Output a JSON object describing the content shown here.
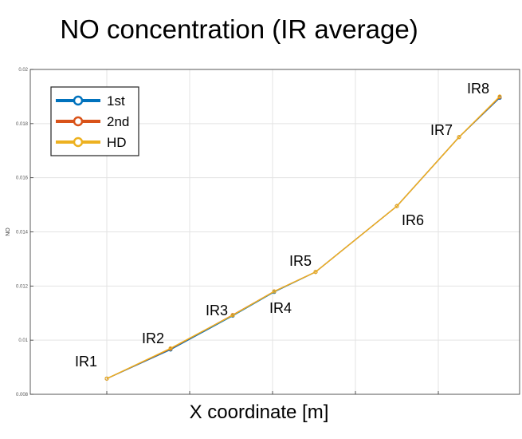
{
  "chart_data": {
    "type": "line",
    "title": "NO concentration (IR average)",
    "xlabel": "X coordinate [m]",
    "ylabel": "NO",
    "ylim": [
      0.008,
      0.02
    ],
    "yticks": [
      "0.008",
      "0.01",
      "0.012",
      "0.014",
      "0.016",
      "0.018",
      "0.02"
    ],
    "ytick_values": [
      0.008,
      0.01,
      0.012,
      0.014,
      0.016,
      0.018,
      0.02
    ],
    "grid": true,
    "legend": "top-left",
    "point_labels": [
      "IR1",
      "IR2",
      "IR3",
      "IR4",
      "IR5",
      "IR6",
      "IR7",
      "IR8"
    ],
    "series": [
      {
        "name": "1st",
        "color": "#0072BD",
        "y": [
          0.00858,
          0.00965,
          0.0109,
          0.01178,
          0.01252,
          0.01495,
          0.0175,
          0.01895
        ]
      },
      {
        "name": "2nd",
        "color": "#D95319",
        "y": [
          0.00858,
          0.00968,
          0.01093,
          0.0118,
          0.01252,
          0.01495,
          0.0175,
          0.01898
        ]
      },
      {
        "name": "HD",
        "color": "#EDB120",
        "y": [
          0.00858,
          0.0097,
          0.01092,
          0.0118,
          0.01252,
          0.01495,
          0.0175,
          0.019
        ]
      }
    ]
  }
}
